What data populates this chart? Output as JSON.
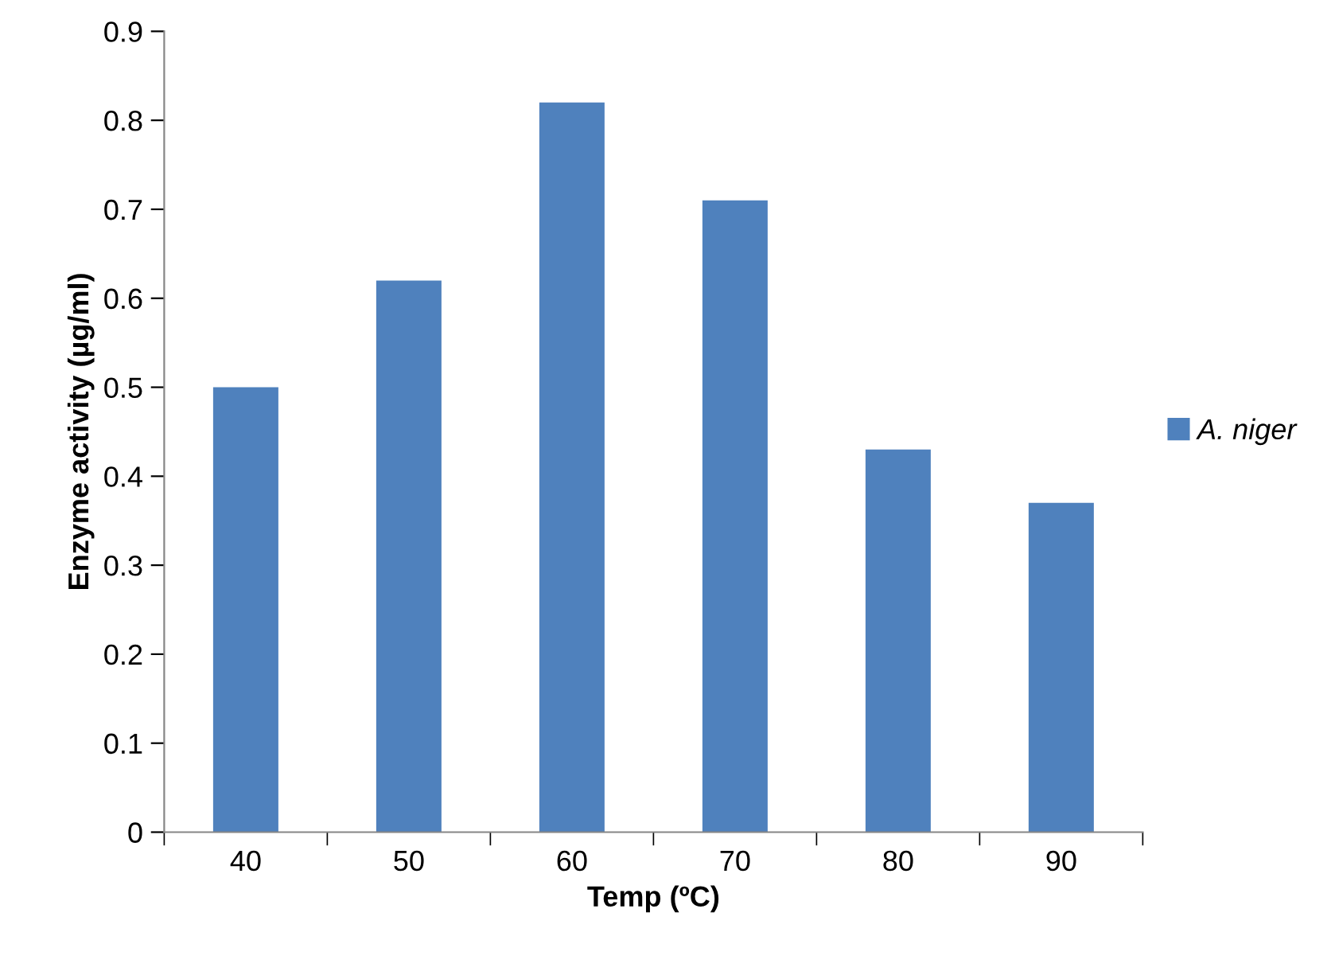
{
  "chart_data": {
    "type": "bar",
    "xlabel": "Temp (ºC)",
    "ylabel": "Enzyme activity (µg/ml)",
    "categories": [
      "40",
      "50",
      "60",
      "70",
      "80",
      "90"
    ],
    "series": [
      {
        "name": "A. niger",
        "color": "#4f81bd",
        "values": [
          0.5,
          0.62,
          0.82,
          0.71,
          0.43,
          0.37
        ]
      }
    ],
    "ylim": [
      0,
      0.9
    ],
    "yticks": [
      0,
      0.1,
      0.2,
      0.3,
      0.4,
      0.5,
      0.6,
      0.7,
      0.8,
      0.9
    ],
    "grid": false,
    "legend": "right"
  }
}
